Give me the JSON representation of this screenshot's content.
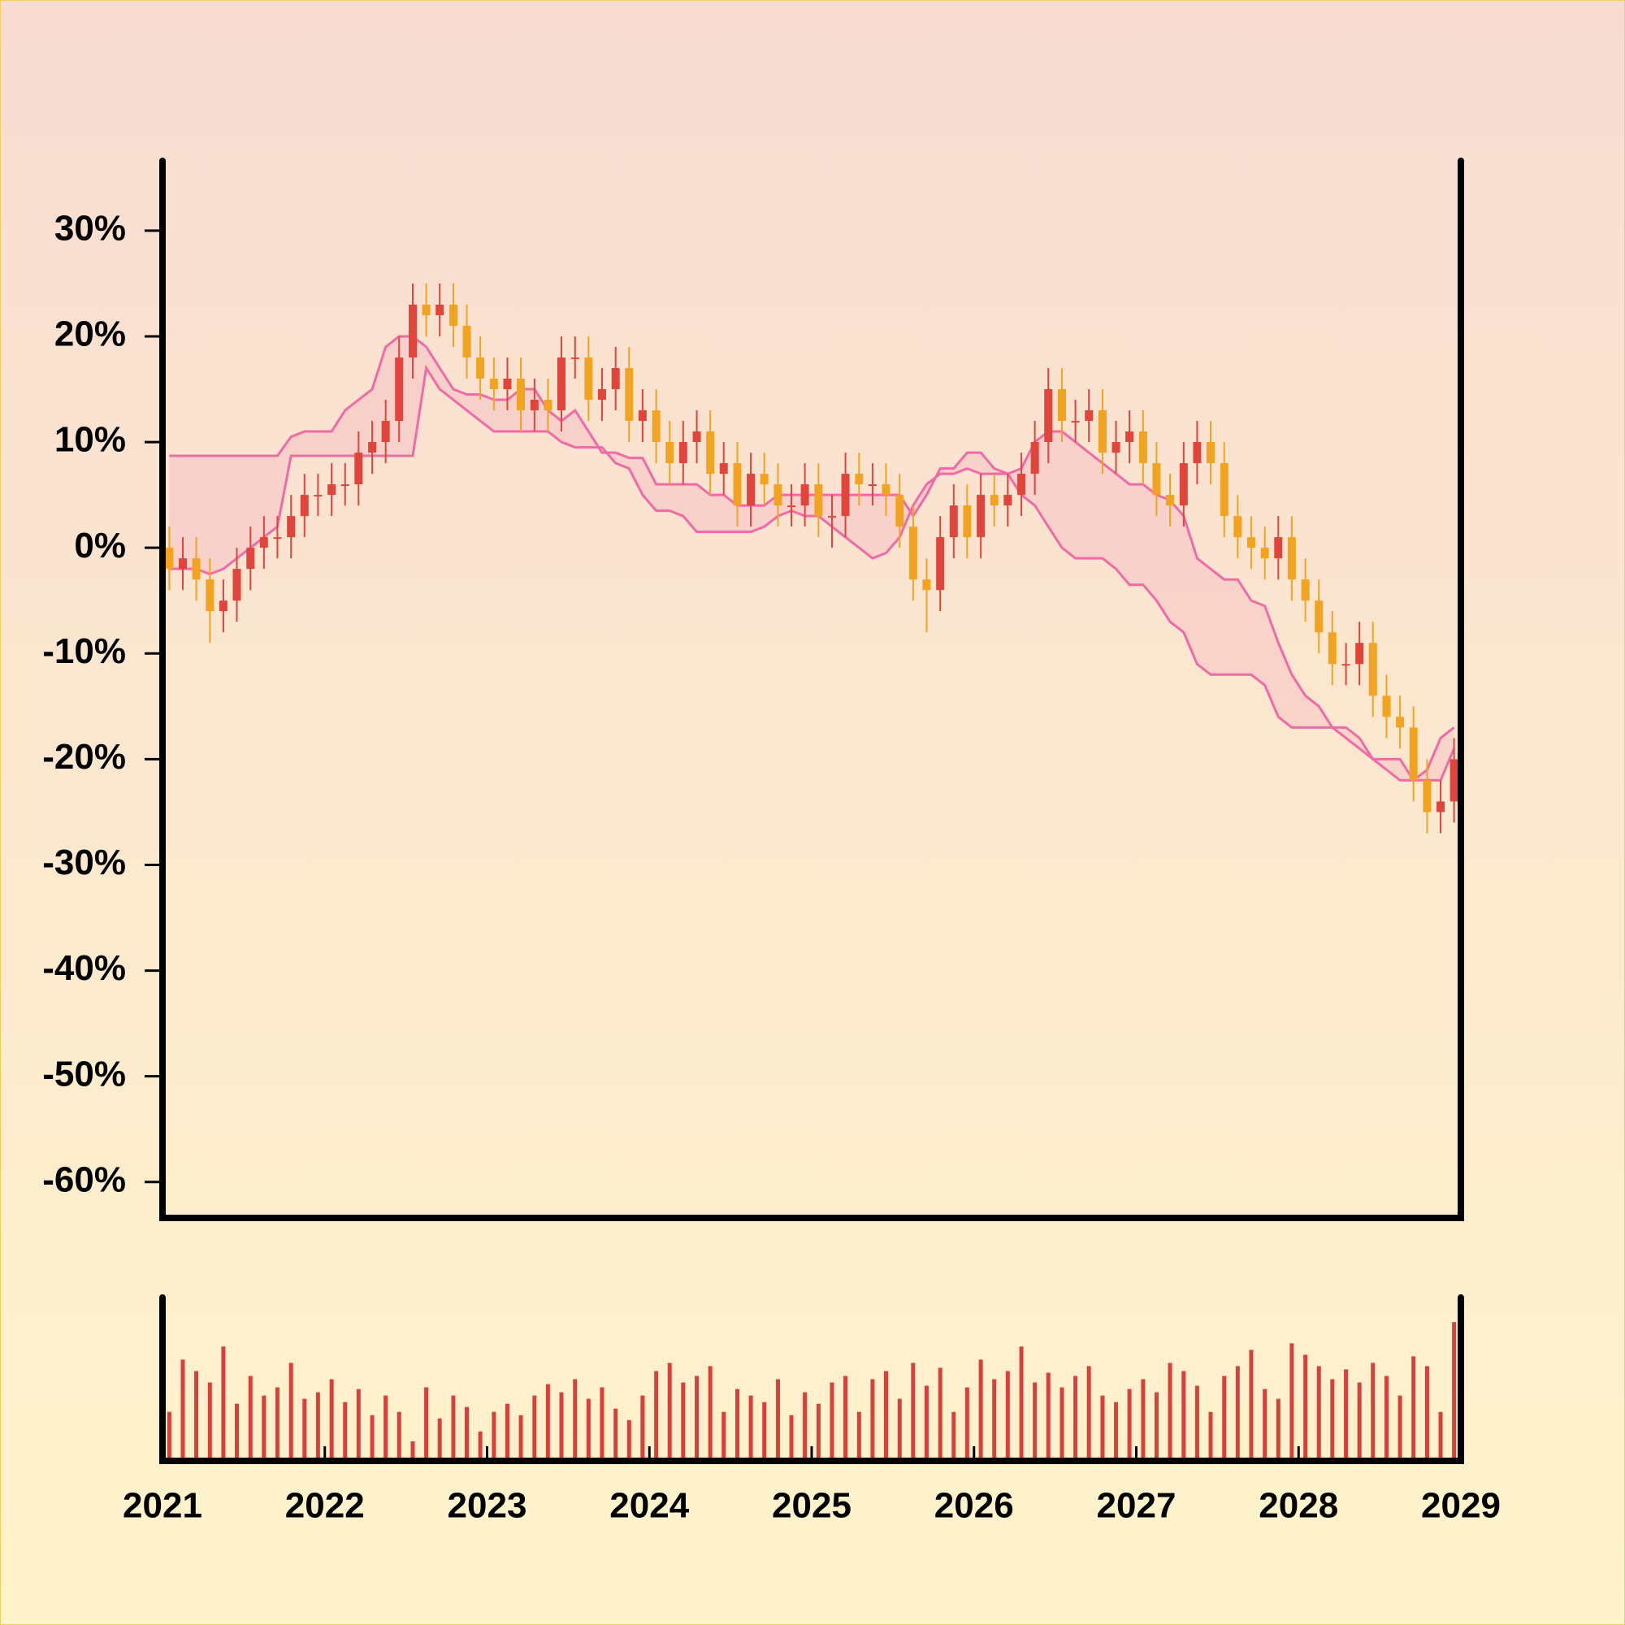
{
  "chart_data": {
    "type": "candlestick",
    "x": [
      2021.042,
      2021.125,
      2021.208,
      2021.292,
      2021.375,
      2021.458,
      2021.542,
      2021.625,
      2021.708,
      2021.792,
      2021.875,
      2021.958,
      2022.042,
      2022.125,
      2022.208,
      2022.292,
      2022.375,
      2022.458,
      2022.542,
      2022.625,
      2022.708,
      2022.792,
      2022.875,
      2022.958,
      2023.042,
      2023.125,
      2023.208,
      2023.292,
      2023.375,
      2023.458,
      2023.542,
      2023.625,
      2023.708,
      2023.792,
      2023.875,
      2023.958,
      2024.042,
      2024.125,
      2024.208,
      2024.292,
      2024.375,
      2024.458,
      2024.542,
      2024.625,
      2024.708,
      2024.792,
      2024.875,
      2024.958,
      2025.042,
      2025.125,
      2025.208,
      2025.292,
      2025.375,
      2025.458,
      2025.542,
      2025.625,
      2025.708,
      2025.792,
      2025.875,
      2025.958,
      2026.042,
      2026.125,
      2026.208,
      2026.292,
      2026.375,
      2026.458,
      2026.542,
      2026.625,
      2026.708,
      2026.792,
      2026.875,
      2026.958,
      2027.042,
      2027.125,
      2027.208,
      2027.292,
      2027.375,
      2027.458,
      2027.542,
      2027.625,
      2027.708,
      2027.792,
      2027.875,
      2027.958,
      2028.042,
      2028.125,
      2028.208,
      2028.292,
      2028.375,
      2028.458,
      2028.542,
      2028.625,
      2028.708,
      2028.792,
      2028.875,
      2028.958
    ],
    "open": [
      0,
      -2,
      -1,
      -3,
      -6,
      -5,
      -2,
      0,
      1,
      1,
      3,
      5,
      5,
      6,
      6,
      9,
      10,
      12,
      18,
      23,
      22,
      23,
      21,
      18,
      16,
      15,
      16,
      13,
      14,
      13,
      18,
      18,
      14,
      15,
      17,
      12,
      13,
      10,
      8,
      10,
      11,
      7,
      8,
      4,
      7,
      6,
      4,
      4,
      6,
      3,
      3,
      7,
      6,
      6,
      5,
      2,
      -3,
      -4,
      1,
      4,
      1,
      5,
      4,
      5,
      7,
      10,
      15,
      12,
      12,
      13,
      9,
      10,
      11,
      8,
      5,
      4,
      8,
      10,
      8,
      3,
      1,
      0,
      -1,
      1,
      -3,
      -5,
      -8,
      -11,
      -11,
      -9,
      -14,
      -16,
      -17,
      -22,
      -25,
      -24
    ],
    "high": [
      2,
      1,
      1,
      -1,
      -3,
      0,
      2,
      3,
      3,
      5,
      7,
      7,
      8,
      8,
      11,
      12,
      14,
      20,
      25,
      25,
      25,
      25,
      23,
      20,
      18,
      18,
      18,
      16,
      16,
      20,
      20,
      20,
      17,
      19,
      19,
      15,
      15,
      12,
      12,
      13,
      13,
      10,
      10,
      9,
      9,
      8,
      6,
      8,
      8,
      5,
      9,
      9,
      8,
      8,
      7,
      4,
      -1,
      3,
      6,
      6,
      7,
      7,
      7,
      9,
      12,
      17,
      17,
      14,
      15,
      15,
      12,
      13,
      13,
      10,
      7,
      10,
      12,
      12,
      10,
      5,
      3,
      2,
      3,
      3,
      -1,
      -3,
      -6,
      -9,
      -7,
      -7,
      -12,
      -14,
      -15,
      -20,
      -22,
      -18
    ],
    "low": [
      -4,
      -4,
      -5,
      -9,
      -8,
      -7,
      -4,
      -2,
      -1,
      -1,
      1,
      3,
      3,
      4,
      4,
      7,
      8,
      10,
      16,
      20,
      20,
      19,
      16,
      14,
      13,
      13,
      11,
      11,
      11,
      11,
      16,
      12,
      12,
      13,
      10,
      10,
      8,
      6,
      6,
      8,
      5,
      5,
      2,
      2,
      4,
      2,
      2,
      2,
      1,
      0,
      1,
      4,
      4,
      3,
      0,
      -5,
      -8,
      -6,
      -1,
      -1,
      -1,
      2,
      2,
      3,
      5,
      8,
      10,
      10,
      10,
      7,
      7,
      8,
      6,
      3,
      2,
      2,
      6,
      6,
      1,
      -1,
      -2,
      -3,
      -3,
      -5,
      -7,
      -10,
      -13,
      -13,
      -13,
      -16,
      -18,
      -19,
      -24,
      -27,
      -27,
      -26
    ],
    "close": [
      -2,
      -1,
      -3,
      -6,
      -5,
      -2,
      0,
      1,
      1,
      3,
      5,
      5,
      6,
      6,
      9,
      10,
      12,
      18,
      23,
      22,
      23,
      21,
      18,
      16,
      15,
      16,
      13,
      14,
      13,
      18,
      18,
      14,
      15,
      17,
      12,
      13,
      10,
      8,
      10,
      11,
      7,
      8,
      4,
      7,
      6,
      4,
      4,
      6,
      3,
      3,
      7,
      6,
      6,
      5,
      2,
      -3,
      -4,
      1,
      4,
      1,
      5,
      4,
      5,
      7,
      10,
      15,
      12,
      12,
      13,
      9,
      10,
      11,
      8,
      5,
      4,
      8,
      10,
      8,
      3,
      1,
      0,
      -1,
      1,
      -3,
      -5,
      -8,
      -11,
      -11,
      -9,
      -14,
      -16,
      -17,
      -22,
      -25,
      -24,
      -20
    ],
    "up_color": "#e0443a",
    "down_color": "#f2a31f",
    "band_upper": [
      8.7,
      8.7,
      8.7,
      8.7,
      8.7,
      8.7,
      8.7,
      8.7,
      8.7,
      10.5,
      11,
      11,
      11,
      13,
      14,
      15,
      19,
      20,
      20,
      19,
      17,
      15,
      14.5,
      14.5,
      14,
      14,
      15,
      15,
      13,
      12,
      13,
      11,
      9,
      9,
      8.5,
      8.5,
      6,
      6,
      6,
      6,
      5,
      5,
      4,
      4,
      4,
      5,
      5,
      5,
      5,
      5,
      5,
      5,
      5,
      5,
      5,
      3,
      5,
      7.5,
      7.5,
      9,
      9,
      7.5,
      7,
      7.5,
      10,
      11,
      11,
      10,
      9,
      8,
      7,
      6,
      6,
      5,
      4.5,
      3,
      -1,
      -2,
      -3,
      -3,
      -5,
      -5.5,
      -9,
      -12,
      -14,
      -15,
      -17,
      -18,
      -19,
      -20,
      -21,
      -22,
      -22,
      -21,
      -18,
      -17
    ],
    "band_lower": [
      -2,
      -2,
      -2,
      -2.5,
      -2,
      -1,
      0,
      1,
      2,
      8.7,
      8.7,
      8.7,
      8.7,
      8.7,
      8.7,
      8.7,
      8.7,
      8.7,
      8.7,
      17,
      15,
      14,
      13,
      12,
      11,
      11,
      11,
      11,
      11,
      10,
      9.5,
      9.5,
      9.5,
      8,
      7.5,
      5,
      3.5,
      3.5,
      3,
      1.5,
      1.5,
      1.5,
      1.5,
      1.5,
      2,
      3,
      3.5,
      3,
      3,
      2,
      1,
      0,
      -1,
      -0.5,
      1,
      4,
      6,
      7,
      7,
      7.5,
      7,
      7,
      7,
      5,
      4,
      2,
      0,
      -1,
      -1,
      -1,
      -2,
      -3.5,
      -3.5,
      -5,
      -7,
      -8,
      -11,
      -12,
      -12,
      -12,
      -12,
      -13,
      -16,
      -17,
      -17,
      -17,
      -17,
      -17,
      -18,
      -20,
      -20,
      -20,
      -22,
      -22,
      -22,
      -19
    ],
    "band_color": "#f06aa8",
    "volume": [
      30,
      62,
      55,
      48,
      70,
      35,
      52,
      40,
      45,
      60,
      38,
      42,
      50,
      36,
      44,
      28,
      40,
      30,
      12,
      45,
      26,
      40,
      33,
      18,
      30,
      35,
      28,
      40,
      47,
      42,
      50,
      38,
      45,
      32,
      25,
      40,
      55,
      60,
      48,
      52,
      58,
      30,
      44,
      40,
      36,
      50,
      28,
      42,
      35,
      48,
      52,
      30,
      50,
      55,
      38,
      60,
      46,
      57,
      30,
      45,
      62,
      50,
      55,
      70,
      48,
      54,
      45,
      52,
      58,
      40,
      36,
      44,
      50,
      42,
      60,
      55,
      46,
      30,
      52,
      58,
      68,
      44,
      38,
      72,
      65,
      58,
      50,
      56,
      48,
      60,
      52,
      40,
      64,
      58,
      30,
      85
    ],
    "volume_ylim": [
      0,
      100
    ],
    "volume_color": "#d9403a",
    "xlim": [
      2021,
      2029
    ],
    "xticks": [
      2021,
      2022,
      2023,
      2024,
      2025,
      2026,
      2027,
      2028,
      2029
    ],
    "ylim": [
      -63.4,
      36.6
    ],
    "yticks": [
      {
        "value": 30,
        "label": "30%"
      },
      {
        "value": 20,
        "label": "20%"
      },
      {
        "value": 10,
        "label": "10%"
      },
      {
        "value": 0,
        "label": "0%"
      },
      {
        "value": -10,
        "label": "-10%"
      },
      {
        "value": -20,
        "label": "-20%"
      },
      {
        "value": -30,
        "label": "-30%"
      },
      {
        "value": -40,
        "label": "-40%"
      },
      {
        "value": -50,
        "label": "-50%"
      },
      {
        "value": -60,
        "label": "-60%"
      }
    ]
  }
}
